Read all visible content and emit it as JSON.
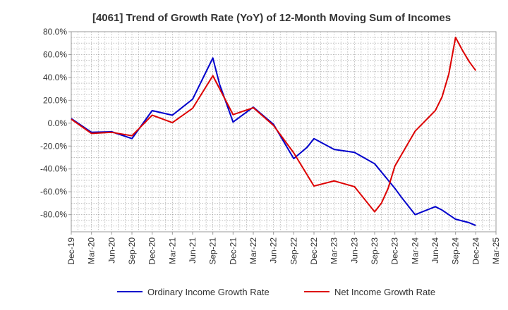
{
  "chart_data": {
    "type": "line",
    "title": "[4061]  Trend of Growth Rate (YoY) of 12-Month Moving Sum of Incomes",
    "xlabel": "",
    "ylabel": "",
    "ylim": [
      -95,
      80
    ],
    "y_ticks": [
      80,
      60,
      40,
      20,
      0,
      -20,
      -40,
      -60,
      -80
    ],
    "y_tick_labels": [
      "80.0%",
      "60.0%",
      "40.0%",
      "20.0%",
      "0.0%",
      "-20.0%",
      "-40.0%",
      "-60.0%",
      "-80.0%"
    ],
    "x_tick_labels": [
      "Dec-19",
      "Mar-20",
      "Jun-20",
      "Sep-20",
      "Dec-20",
      "Mar-21",
      "Jun-21",
      "Sep-21",
      "Dec-21",
      "Mar-22",
      "Jun-22",
      "Sep-22",
      "Dec-22",
      "Mar-23",
      "Jun-23",
      "Sep-23",
      "Dec-23",
      "Mar-24",
      "Jun-24",
      "Sep-24",
      "Dec-24",
      "Mar-25"
    ],
    "grid": true,
    "legend_position": "bottom",
    "series": [
      {
        "name": "Ordinary Income Growth Rate",
        "color": "#0000cc",
        "points": [
          [
            "Dec-19",
            4
          ],
          [
            "Mar-20",
            -8
          ],
          [
            "Jun-20",
            -7.5
          ],
          [
            "Sep-20",
            -13.5
          ],
          [
            "Dec-20",
            11
          ],
          [
            "Mar-21",
            7
          ],
          [
            "Jun-21",
            21
          ],
          [
            "Sep-21",
            57
          ],
          [
            "Oct-21",
            34
          ],
          [
            "Dec-21",
            1
          ],
          [
            "Mar-22",
            14
          ],
          [
            "Jun-22",
            -1
          ],
          [
            "Sep-22",
            -31
          ],
          [
            "Nov-22",
            -21
          ],
          [
            "Dec-22",
            -13.5
          ],
          [
            "Mar-23",
            -23
          ],
          [
            "Jun-23",
            -25.5
          ],
          [
            "Sep-23",
            -35.5
          ],
          [
            "Dec-23",
            -57
          ],
          [
            "Jan-24",
            -65
          ],
          [
            "Mar-24",
            -80
          ],
          [
            "Jun-24",
            -73
          ],
          [
            "Jul-24",
            -76
          ],
          [
            "Aug-24",
            -80
          ],
          [
            "Sep-24",
            -84
          ],
          [
            "Nov-24",
            -87
          ],
          [
            "Dec-24",
            -89.5
          ]
        ]
      },
      {
        "name": "Net Income Growth Rate",
        "color": "#dd0000",
        "points": [
          [
            "Dec-19",
            3.5
          ],
          [
            "Mar-20",
            -9
          ],
          [
            "Jun-20",
            -8
          ],
          [
            "Sep-20",
            -11
          ],
          [
            "Dec-20",
            7
          ],
          [
            "Mar-21",
            0.5
          ],
          [
            "Jun-21",
            13
          ],
          [
            "Sep-21",
            41.5
          ],
          [
            "Dec-21",
            7.5
          ],
          [
            "Mar-22",
            13.5
          ],
          [
            "Jun-22",
            -2
          ],
          [
            "Sep-22",
            -26
          ],
          [
            "Dec-22",
            -55
          ],
          [
            "Mar-23",
            -50.5
          ],
          [
            "Jun-23",
            -55.5
          ],
          [
            "Sep-23",
            -77.5
          ],
          [
            "Oct-23",
            -70
          ],
          [
            "Nov-23",
            -57
          ],
          [
            "Dec-23",
            -37.5
          ],
          [
            "Mar-24",
            -7
          ],
          [
            "Jun-24",
            11
          ],
          [
            "Jul-24",
            23
          ],
          [
            "Aug-24",
            43
          ],
          [
            "Sep-24",
            75
          ],
          [
            "Oct-24",
            64
          ],
          [
            "Nov-24",
            54
          ],
          [
            "Dec-24",
            46
          ]
        ]
      }
    ]
  }
}
